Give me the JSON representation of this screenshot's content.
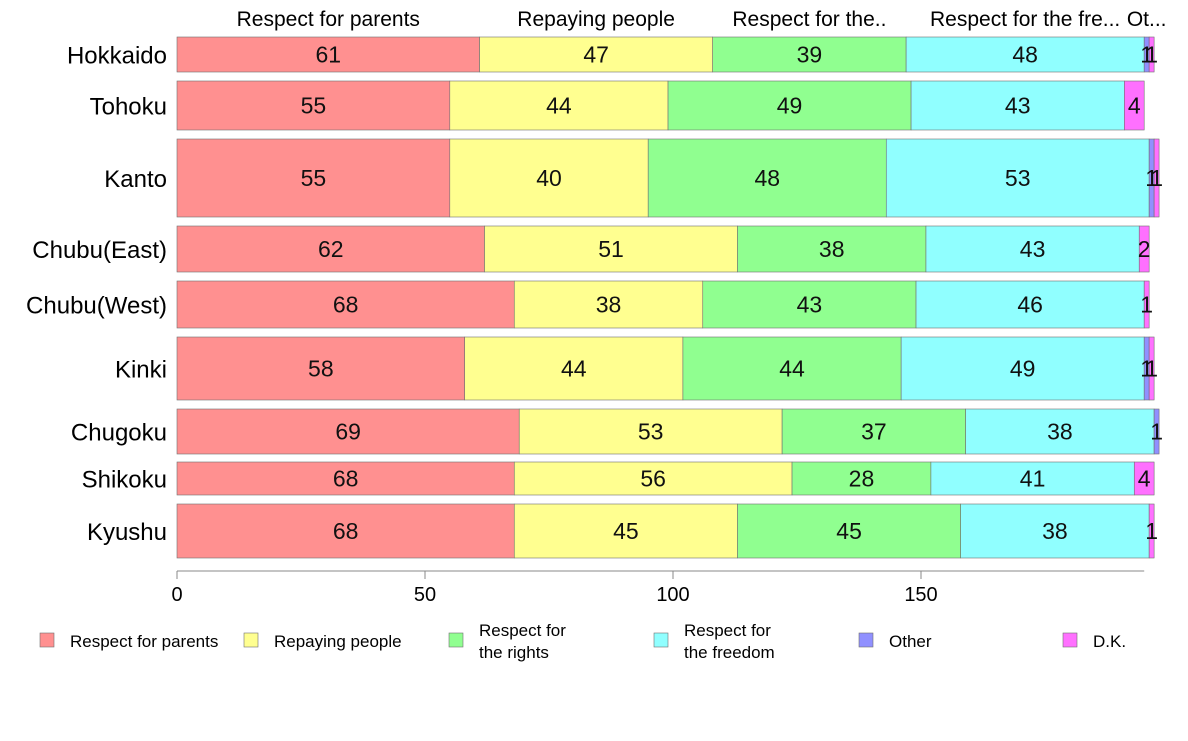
{
  "chart_data": {
    "type": "bar",
    "orientation": "horizontal",
    "stacked": true,
    "categories": [
      "Hokkaido",
      "Tohoku",
      "Kanto",
      "Chubu(East)",
      "Chubu(West)",
      "Kinki",
      "Chugoku",
      "Shikoku",
      "Kyushu"
    ],
    "series": [
      {
        "name": "Respect for parents",
        "short_label": "Respect for parents",
        "color": "#ff9090",
        "values": [
          61,
          55,
          55,
          62,
          68,
          58,
          69,
          68,
          68
        ]
      },
      {
        "name": "Repaying people",
        "short_label": "Repaying people",
        "color": "#ffff90",
        "values": [
          47,
          44,
          40,
          51,
          38,
          44,
          53,
          56,
          45
        ]
      },
      {
        "name": "Respect for the rights",
        "short_label": "Respect for the..",
        "color": "#90ff90",
        "values": [
          39,
          49,
          48,
          38,
          43,
          44,
          37,
          28,
          45
        ]
      },
      {
        "name": "Respect for the freedom",
        "short_label": "Respect for the fre...",
        "color": "#90ffff",
        "values": [
          48,
          43,
          53,
          43,
          46,
          49,
          38,
          41,
          38
        ]
      },
      {
        "name": "Other",
        "short_label": "Ot...",
        "color": "#9090ff",
        "values": [
          1,
          0,
          1,
          0,
          0,
          1,
          1,
          0,
          0
        ]
      },
      {
        "name": "D.K.",
        "short_label": "",
        "color": "#ff70ff",
        "values": [
          1,
          4,
          1,
          2,
          1,
          1,
          0,
          4,
          1
        ]
      }
    ],
    "legend": {
      "placement": "bottom",
      "items": [
        {
          "lines": [
            "Respect for parents"
          ],
          "color": "#ff9090"
        },
        {
          "lines": [
            "Repaying people"
          ],
          "color": "#ffff90"
        },
        {
          "lines": [
            "Respect for",
            "the rights"
          ],
          "color": "#90ff90"
        },
        {
          "lines": [
            "Respect for",
            "the freedom"
          ],
          "color": "#90ffff"
        },
        {
          "lines": [
            "Other"
          ],
          "color": "#9090ff"
        },
        {
          "lines": [
            "D.K."
          ],
          "color": "#ff70ff"
        }
      ]
    },
    "xticks": [
      "0",
      "50",
      "100",
      "150"
    ],
    "xlim": [
      0,
      197
    ],
    "grid": false
  }
}
